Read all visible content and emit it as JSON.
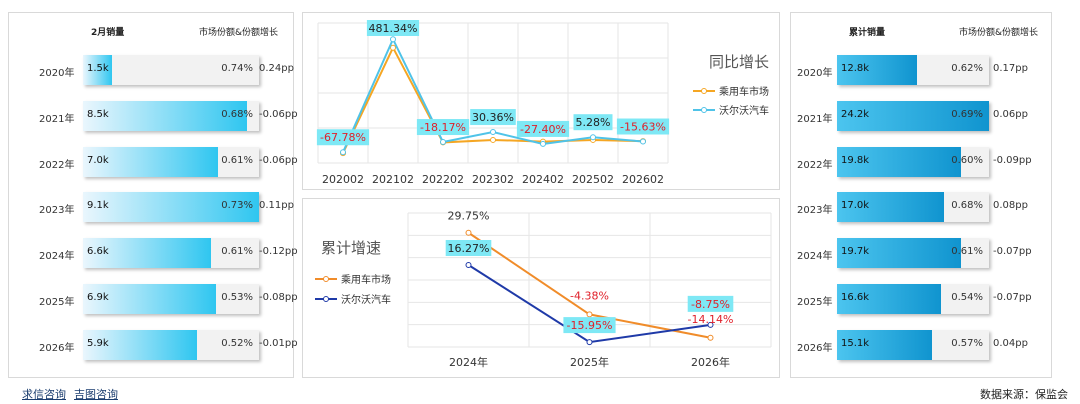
{
  "left_panel": {
    "header_left": "2月销量",
    "header_right": "市场份额&份额增长",
    "rows": [
      {
        "year": "2020年",
        "value_label": "1.5k",
        "value": 1.5,
        "share": "0.74%",
        "growth": "0.24pp"
      },
      {
        "year": "2021年",
        "value_label": "8.5k",
        "value": 8.5,
        "share": "0.68%",
        "growth": "-0.06pp"
      },
      {
        "year": "2022年",
        "value_label": "7.0k",
        "value": 7.0,
        "share": "0.61%",
        "growth": "-0.06pp"
      },
      {
        "year": "2023年",
        "value_label": "9.1k",
        "value": 9.1,
        "share": "0.73%",
        "growth": "0.11pp"
      },
      {
        "year": "2024年",
        "value_label": "6.6k",
        "value": 6.6,
        "share": "0.61%",
        "growth": "-0.12pp"
      },
      {
        "year": "2025年",
        "value_label": "6.9k",
        "value": 6.9,
        "share": "0.53%",
        "growth": "-0.08pp"
      },
      {
        "year": "2026年",
        "value_label": "5.9k",
        "value": 5.9,
        "share": "0.52%",
        "growth": "-0.01pp"
      }
    ]
  },
  "right_panel": {
    "header_left": "累计销量",
    "header_right": "市场份额&份额增长",
    "rows": [
      {
        "year": "2020年",
        "value_label": "12.8k",
        "value": 12.8,
        "share": "0.62%",
        "growth": "0.17pp"
      },
      {
        "year": "2021年",
        "value_label": "24.2k",
        "value": 24.2,
        "share": "0.69%",
        "growth": "0.06pp"
      },
      {
        "year": "2022年",
        "value_label": "19.8k",
        "value": 19.8,
        "share": "0.60%",
        "growth": "-0.09pp"
      },
      {
        "year": "2023年",
        "value_label": "17.0k",
        "value": 17.0,
        "share": "0.68%",
        "growth": "0.08pp"
      },
      {
        "year": "2024年",
        "value_label": "19.7k",
        "value": 19.7,
        "share": "0.61%",
        "growth": "-0.07pp"
      },
      {
        "year": "2025年",
        "value_label": "16.6k",
        "value": 16.6,
        "share": "0.54%",
        "growth": "-0.07pp"
      },
      {
        "year": "2026年",
        "value_label": "15.1k",
        "value": 15.1,
        "share": "0.57%",
        "growth": "0.04pp"
      }
    ]
  },
  "colors": {
    "market": "#f5a623",
    "volvo_top": "#4fc3e8",
    "market_bottom": "#f08c2a",
    "volvo_bottom": "#1f3aa8",
    "label_bg": "#7ee8f5",
    "negative_text": "#e0202a"
  },
  "chart_data": [
    {
      "type": "line",
      "title": "同比增长",
      "categories": [
        "202002",
        "202102",
        "202202",
        "202302",
        "202402",
        "202502",
        "202602"
      ],
      "series": [
        {
          "name": "乘用车市场",
          "values": [
            -72,
            440,
            -20,
            -8,
            -16,
            -8,
            -14
          ]
        },
        {
          "name": "沃尔沃汽车",
          "values": [
            -67.78,
            481.34,
            -18.17,
            30.36,
            -27.4,
            5.28,
            -15.63
          ]
        }
      ],
      "data_labels": [
        "-67.78%",
        "481.34%",
        "-18.17%",
        "30.36%",
        "-27.40%",
        "5.28%",
        "-15.63%"
      ],
      "ylim": [
        -120,
        560
      ],
      "legend": "right",
      "grid": true
    },
    {
      "type": "line",
      "title": "累计增速",
      "categories": [
        "2024年",
        "2025年",
        "2026年"
      ],
      "series": [
        {
          "name": "乘用车市场",
          "values": [
            29.75,
            -4.38,
            -14.14
          ]
        },
        {
          "name": "沃尔沃汽车",
          "values": [
            16.27,
            -15.95,
            -8.75
          ]
        }
      ],
      "market_labels": [
        "29.75%",
        "-4.38%",
        "-14.14%"
      ],
      "volvo_labels": [
        "16.27%",
        "-15.95%",
        "-8.75%"
      ],
      "ylim": [
        -18,
        38
      ],
      "legend": "left",
      "grid": true
    }
  ],
  "footer": {
    "link1": "求信咨询",
    "link2": "吉图咨询",
    "source": "数据来源：保监会"
  }
}
